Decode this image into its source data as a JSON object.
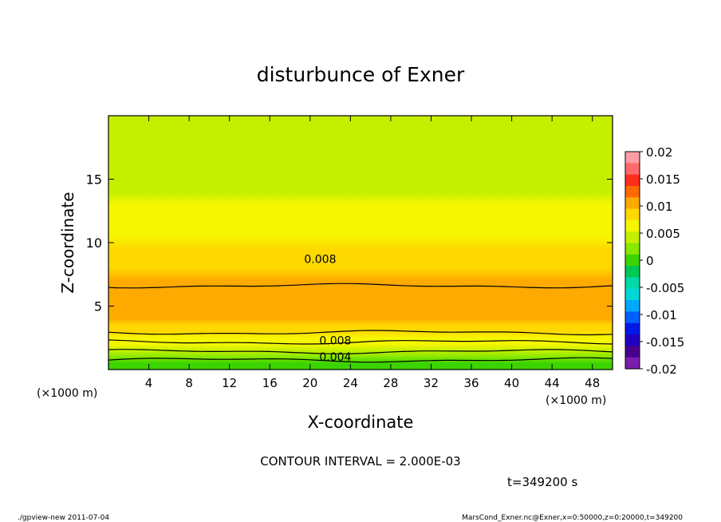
{
  "chart_data": {
    "type": "heatmap",
    "title": "disturbunce of Exner",
    "xlabel": "X-coordinate",
    "ylabel": "Z-coordinate",
    "x_unit_left": "(×1000 m)",
    "x_unit_right": "(×1000 m)",
    "xlim": [
      0,
      50
    ],
    "ylim": [
      0,
      20
    ],
    "x_ticks": [
      4,
      8,
      12,
      16,
      20,
      24,
      28,
      32,
      36,
      40,
      44,
      48
    ],
    "y_ticks": [
      5,
      10,
      15
    ],
    "colorbar": {
      "ticks": [
        "0.02",
        "0.015",
        "0.01",
        "0.005",
        "0",
        "-0.005",
        "-0.01",
        "-0.015",
        "-0.02"
      ],
      "levels": [
        0.02,
        0.015,
        0.01,
        0.005,
        0,
        -0.005,
        -0.01,
        -0.015,
        -0.02
      ],
      "colors": [
        "#ff9ea6",
        "#ff6b6b",
        "#ff2d1e",
        "#ff6a00",
        "#ffaa00",
        "#ffd800",
        "#f6f600",
        "#c4f000",
        "#88e800",
        "#3cd400",
        "#00c855",
        "#00d8a8",
        "#00d8d8",
        "#00a8ff",
        "#0060ff",
        "#0018e8",
        "#2000c0",
        "#4a008e",
        "#7a1eae"
      ]
    },
    "z_profile": [
      {
        "z": 0.0,
        "value": 0.0005
      },
      {
        "z": 0.5,
        "value": 0.001
      },
      {
        "z": 1.0,
        "value": 0.003
      },
      {
        "z": 1.5,
        "value": 0.0042
      },
      {
        "z": 2.0,
        "value": 0.0055
      },
      {
        "z": 2.5,
        "value": 0.007
      },
      {
        "z": 3.0,
        "value": 0.0082
      },
      {
        "z": 3.5,
        "value": 0.0092
      },
      {
        "z": 4.0,
        "value": 0.01
      },
      {
        "z": 5.0,
        "value": 0.0105
      },
      {
        "z": 6.0,
        "value": 0.0103
      },
      {
        "z": 7.0,
        "value": 0.0098
      },
      {
        "z": 8.0,
        "value": 0.0088
      },
      {
        "z": 8.8,
        "value": 0.008
      },
      {
        "z": 9.5,
        "value": 0.0075
      },
      {
        "z": 10.5,
        "value": 0.0068
      },
      {
        "z": 11.5,
        "value": 0.0063
      },
      {
        "z": 12.0,
        "value": 0.006
      },
      {
        "z": 13.0,
        "value": 0.0055
      },
      {
        "z": 14.0,
        "value": 0.005
      },
      {
        "z": 15.0,
        "value": 0.0046
      },
      {
        "z": 16.0,
        "value": 0.0043
      },
      {
        "z": 17.0,
        "value": 0.0041
      },
      {
        "z": 18.0,
        "value": 0.004
      },
      {
        "z": 19.0,
        "value": 0.004
      },
      {
        "z": 20.0,
        "value": 0.0039
      }
    ],
    "contour_labels": [
      {
        "text": "0.008",
        "x": 21,
        "z": 8.7
      },
      {
        "text": "0.008",
        "x": 22.5,
        "z": 2.3
      },
      {
        "text": "0.004",
        "x": 22.5,
        "z": 1.0
      }
    ],
    "contour_interval_text": "CONTOUR INTERVAL = 2.000E-03",
    "time_text": "t=349200 s"
  },
  "footer": {
    "left": "./gpview-new   2011-07-04",
    "right": "MarsCond_Exner.nc@Exner,x=0:50000,z=0:20000,t=349200"
  }
}
